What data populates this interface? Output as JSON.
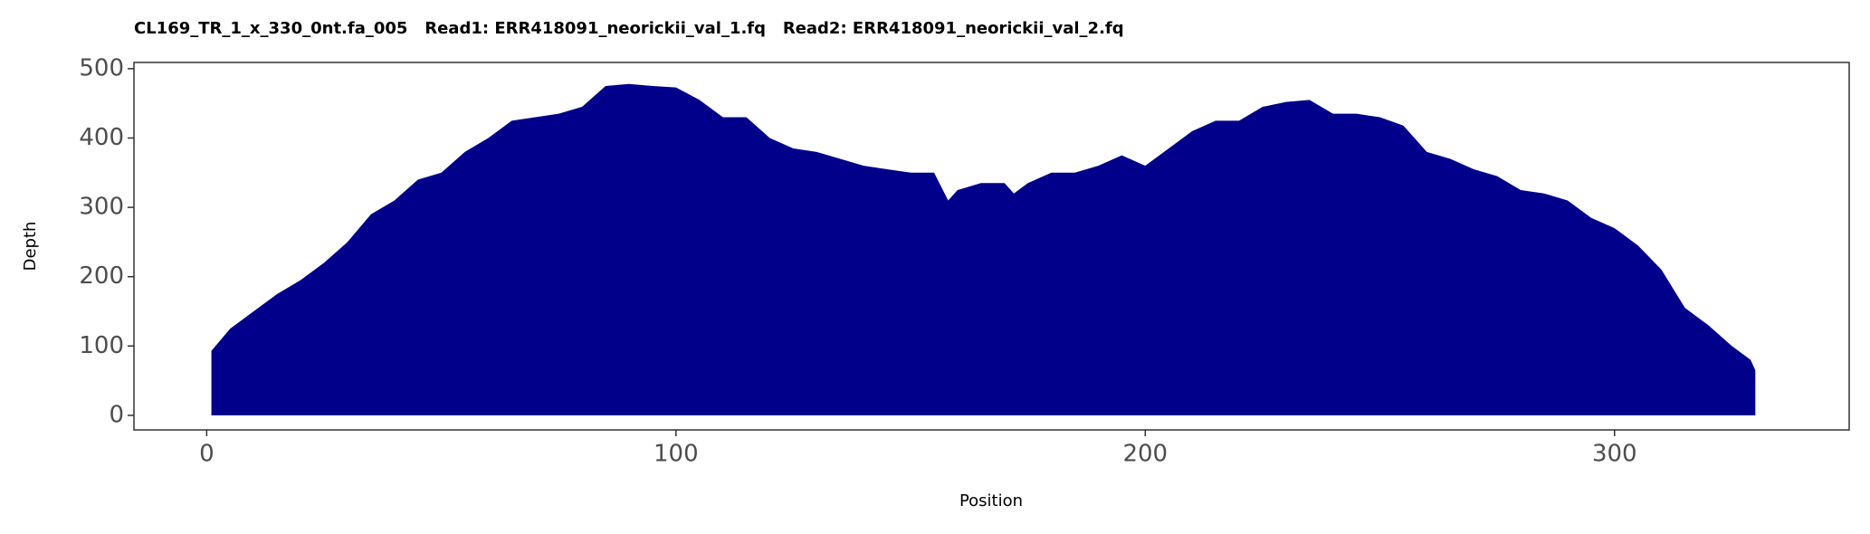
{
  "chart_data": {
    "type": "area",
    "title": "CL169_TR_1_x_330_0nt.fa_005   Read1: ERR418091_neorickii_val_1.fq   Read2: ERR418091_neorickii_val_2.fq",
    "x_label": "Position",
    "y_label": "Depth",
    "color": "#00008b",
    "x": [
      1,
      5,
      10,
      15,
      20,
      25,
      30,
      35,
      40,
      45,
      50,
      55,
      60,
      65,
      70,
      75,
      80,
      85,
      90,
      95,
      100,
      105,
      110,
      115,
      120,
      125,
      130,
      135,
      140,
      145,
      150,
      155,
      158,
      160,
      165,
      170,
      172,
      175,
      180,
      185,
      190,
      195,
      200,
      205,
      210,
      215,
      220,
      225,
      230,
      235,
      240,
      245,
      250,
      255,
      260,
      265,
      270,
      275,
      280,
      285,
      290,
      295,
      300,
      305,
      310,
      315,
      320,
      325,
      329,
      330
    ],
    "values": [
      93,
      125,
      150,
      175,
      195,
      220,
      250,
      290,
      310,
      340,
      350,
      380,
      400,
      425,
      430,
      435,
      445,
      475,
      478,
      475,
      473,
      455,
      430,
      430,
      400,
      385,
      380,
      370,
      360,
      355,
      350,
      350,
      310,
      325,
      335,
      335,
      320,
      335,
      350,
      350,
      360,
      375,
      360,
      385,
      410,
      425,
      425,
      445,
      452,
      455,
      435,
      435,
      430,
      418,
      380,
      370,
      355,
      345,
      325,
      320,
      310,
      285,
      270,
      245,
      210,
      155,
      130,
      100,
      80,
      65
    ],
    "xlim": [
      -15.5,
      350
    ],
    "ylim": [
      -21,
      509
    ],
    "xticks": [
      0,
      100,
      200,
      300
    ],
    "yticks": [
      0,
      100,
      200,
      300,
      400,
      500
    ]
  }
}
